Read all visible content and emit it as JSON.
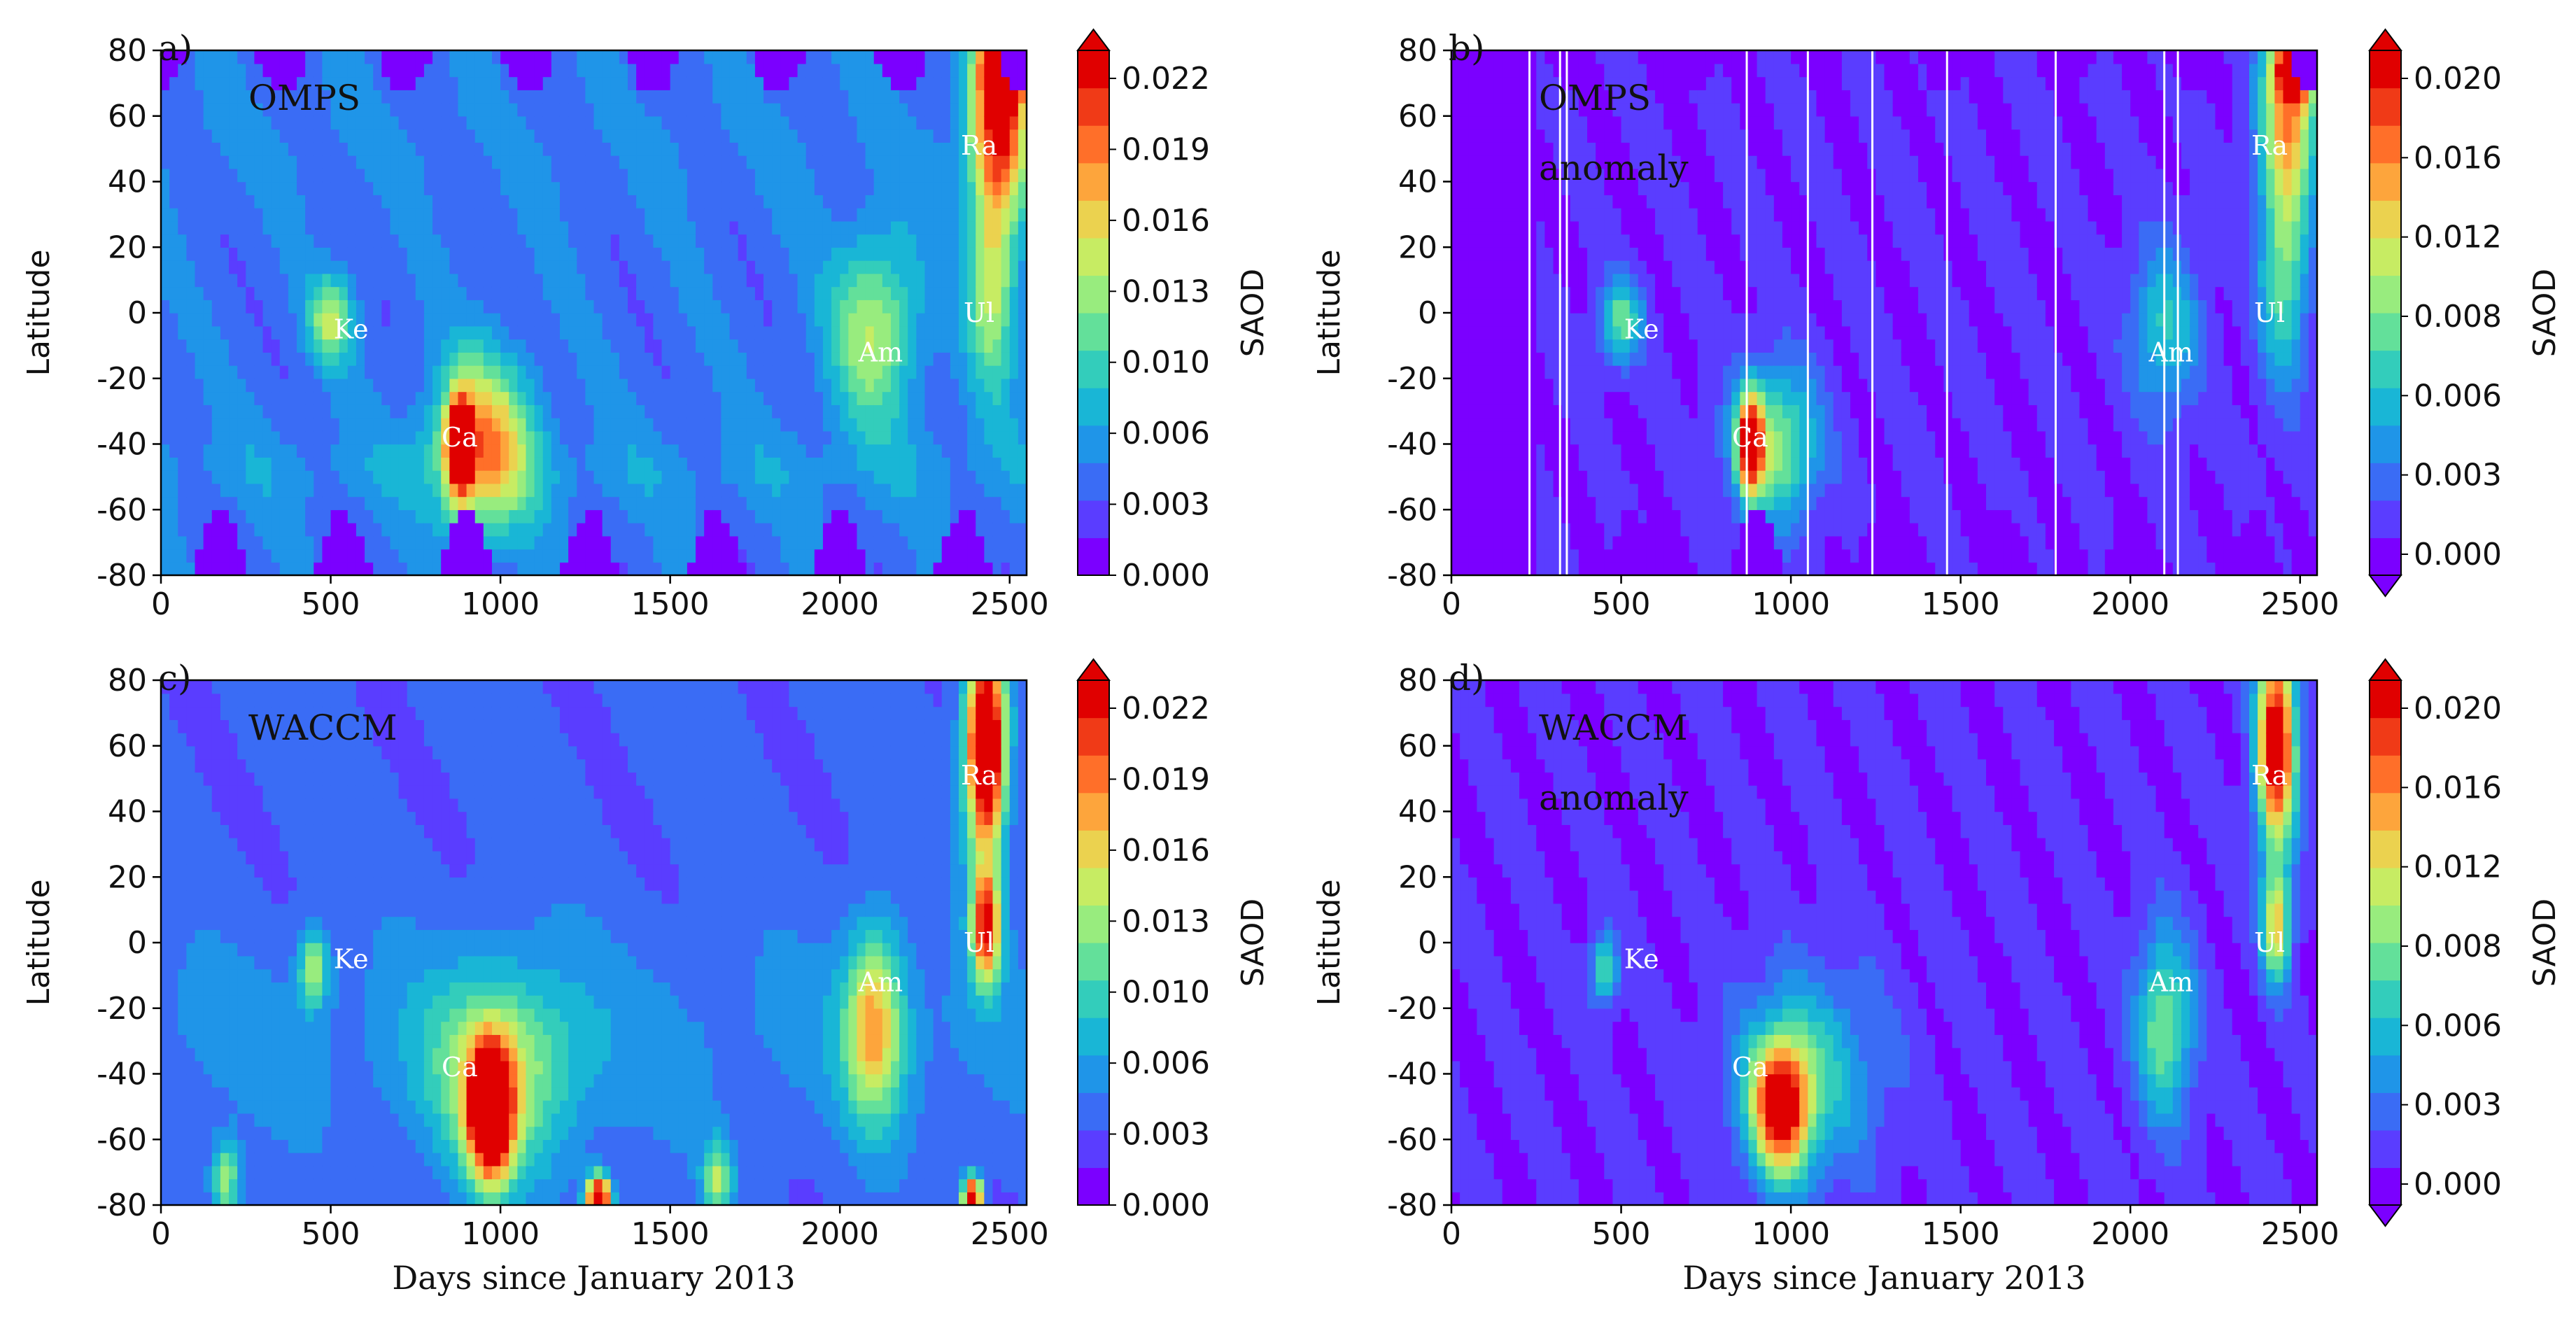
{
  "colormap": [
    "#7b00ff",
    "#5a3dff",
    "#3a6cf5",
    "#1f95e8",
    "#19b6d6",
    "#33cdbb",
    "#63e09a",
    "#98ec7e",
    "#c7ec63",
    "#ebd24f",
    "#fda53c",
    "#ff6f29",
    "#f03a17",
    "#e00000"
  ],
  "background_color": "#7b00ff",
  "chart_data": [
    {
      "id": "a",
      "type": "heatmap",
      "panel_label": "a)",
      "title": "OMPS",
      "subtitle": "",
      "xlabel": "",
      "ylabel": "Latitude",
      "cbar_label": "SAOD",
      "xlim": [
        0,
        2550
      ],
      "ylim": [
        -80,
        80
      ],
      "xticks": [
        0,
        500,
        1000,
        1500,
        2000,
        2500
      ],
      "yticks": [
        -80,
        -60,
        -40,
        -20,
        0,
        20,
        40,
        60,
        80
      ],
      "colorbar_ticks": [
        "0.000",
        "0.003",
        "0.006",
        "0.010",
        "0.013",
        "0.016",
        "0.019",
        "0.022"
      ],
      "colorbar_extend": "max",
      "anomaly": false,
      "gaps": [],
      "events": [
        {
          "label": "Ke",
          "day": 560,
          "lat": -5
        },
        {
          "label": "Ca",
          "day": 880,
          "lat": -38
        },
        {
          "label": "Am",
          "day": 2120,
          "lat": -12
        },
        {
          "label": "Ul",
          "day": 2410,
          "lat": 0
        },
        {
          "label": "Ra",
          "day": 2410,
          "lat": 51
        }
      ],
      "features": [
        {
          "day": 500,
          "lat": -2,
          "sd": 45,
          "sl": 9,
          "v": 0.01
        },
        {
          "day": 950,
          "lat": -40,
          "sd": 100,
          "sl": 18,
          "v": 0.015
        },
        {
          "day": 880,
          "lat": -40,
          "sd": 25,
          "sl": 10,
          "v": 0.024
        },
        {
          "day": 2100,
          "lat": -5,
          "sd": 90,
          "sl": 20,
          "v": 0.01
        },
        {
          "day": 2470,
          "lat": 60,
          "sd": 60,
          "sl": 18,
          "v": 0.018
        },
        {
          "day": 2490,
          "lat": 76,
          "sd": 45,
          "sl": 7,
          "v": 0.026
        },
        {
          "day": 2450,
          "lat": 15,
          "sd": 50,
          "sl": 25,
          "v": 0.012
        }
      ]
    },
    {
      "id": "b",
      "type": "heatmap",
      "panel_label": "b)",
      "title": "OMPS",
      "subtitle": "anomaly",
      "xlabel": "",
      "ylabel": "Latitude",
      "cbar_label": "SAOD",
      "xlim": [
        0,
        2550
      ],
      "ylim": [
        -80,
        80
      ],
      "xticks": [
        0,
        500,
        1000,
        1500,
        2000,
        2500
      ],
      "yticks": [
        -80,
        -60,
        -40,
        -20,
        0,
        20,
        40,
        60,
        80
      ],
      "colorbar_ticks": [
        "0.000",
        "0.003",
        "0.006",
        "0.008",
        "0.012",
        "0.016",
        "0.020"
      ],
      "colorbar_extend": "both",
      "anomaly": true,
      "gaps": [
        230,
        320,
        340,
        870,
        1050,
        1240,
        1460,
        1780,
        2100,
        2140
      ],
      "events": [
        {
          "label": "Ke",
          "day": 560,
          "lat": -5
        },
        {
          "label": "Ca",
          "day": 880,
          "lat": -38
        },
        {
          "label": "Am",
          "day": 2120,
          "lat": -12
        },
        {
          "label": "Ul",
          "day": 2410,
          "lat": 0
        },
        {
          "label": "Ra",
          "day": 2410,
          "lat": 51
        }
      ],
      "features": [
        {
          "day": 500,
          "lat": -2,
          "sd": 45,
          "sl": 9,
          "v": 0.009
        },
        {
          "day": 950,
          "lat": -40,
          "sd": 90,
          "sl": 16,
          "v": 0.011
        },
        {
          "day": 880,
          "lat": -40,
          "sd": 25,
          "sl": 10,
          "v": 0.02
        },
        {
          "day": 2100,
          "lat": -5,
          "sd": 70,
          "sl": 18,
          "v": 0.007
        },
        {
          "day": 2470,
          "lat": 60,
          "sd": 60,
          "sl": 18,
          "v": 0.014
        },
        {
          "day": 2490,
          "lat": 76,
          "sd": 45,
          "sl": 7,
          "v": 0.022
        },
        {
          "day": 2450,
          "lat": 15,
          "sd": 50,
          "sl": 25,
          "v": 0.01
        }
      ]
    },
    {
      "id": "c",
      "type": "heatmap",
      "panel_label": "c)",
      "title": "WACCM",
      "subtitle": "",
      "xlabel": "Days since January 2013",
      "ylabel": "Latitude",
      "cbar_label": "SAOD",
      "xlim": [
        0,
        2550
      ],
      "ylim": [
        -80,
        80
      ],
      "xticks": [
        0,
        500,
        1000,
        1500,
        2000,
        2500
      ],
      "yticks": [
        -80,
        -60,
        -40,
        -20,
        0,
        20,
        40,
        60,
        80
      ],
      "colorbar_ticks": [
        "0.000",
        "0.003",
        "0.006",
        "0.010",
        "0.013",
        "0.016",
        "0.019",
        "0.022"
      ],
      "colorbar_extend": "max",
      "anomaly": false,
      "gaps": [],
      "events": [
        {
          "label": "Ke",
          "day": 560,
          "lat": -5
        },
        {
          "label": "Ca",
          "day": 880,
          "lat": -38
        },
        {
          "label": "Am",
          "day": 2120,
          "lat": -12
        },
        {
          "label": "Ul",
          "day": 2410,
          "lat": 0
        },
        {
          "label": "Ra",
          "day": 2410,
          "lat": 51
        }
      ],
      "features": [
        {
          "day": 450,
          "lat": -8,
          "sd": 30,
          "sl": 8,
          "v": 0.01
        },
        {
          "day": 970,
          "lat": -52,
          "sd": 45,
          "sl": 14,
          "v": 0.026
        },
        {
          "day": 1000,
          "lat": -40,
          "sd": 150,
          "sl": 22,
          "v": 0.01
        },
        {
          "day": 2100,
          "lat": -25,
          "sd": 60,
          "sl": 20,
          "v": 0.014
        },
        {
          "day": 2430,
          "lat": 60,
          "sd": 40,
          "sl": 22,
          "v": 0.03
        },
        {
          "day": 2430,
          "lat": 5,
          "sd": 30,
          "sl": 12,
          "v": 0.02
        },
        {
          "day": 1290,
          "lat": -78,
          "sd": 25,
          "sl": 5,
          "v": 0.026
        },
        {
          "day": 2390,
          "lat": -78,
          "sd": 20,
          "sl": 5,
          "v": 0.024
        },
        {
          "day": 190,
          "lat": -72,
          "sd": 30,
          "sl": 8,
          "v": 0.01
        },
        {
          "day": 1640,
          "lat": -72,
          "sd": 30,
          "sl": 8,
          "v": 0.01
        }
      ]
    },
    {
      "id": "d",
      "type": "heatmap",
      "panel_label": "d)",
      "title": "WACCM",
      "subtitle": "anomaly",
      "xlabel": "Days since January 2013",
      "ylabel": "Latitude",
      "cbar_label": "SAOD",
      "xlim": [
        0,
        2550
      ],
      "ylim": [
        -80,
        80
      ],
      "xticks": [
        0,
        500,
        1000,
        1500,
        2000,
        2500
      ],
      "yticks": [
        -80,
        -60,
        -40,
        -20,
        0,
        20,
        40,
        60,
        80
      ],
      "colorbar_ticks": [
        "0.000",
        "0.003",
        "0.006",
        "0.008",
        "0.012",
        "0.016",
        "0.020"
      ],
      "colorbar_extend": "both",
      "anomaly": true,
      "gaps": [],
      "events": [
        {
          "label": "Ke",
          "day": 560,
          "lat": -5
        },
        {
          "label": "Ca",
          "day": 880,
          "lat": -38
        },
        {
          "label": "Am",
          "day": 2120,
          "lat": -12
        },
        {
          "label": "Ul",
          "day": 2410,
          "lat": 0
        },
        {
          "label": "Ra",
          "day": 2410,
          "lat": 51
        }
      ],
      "features": [
        {
          "day": 450,
          "lat": -8,
          "sd": 30,
          "sl": 8,
          "v": 0.008
        },
        {
          "day": 970,
          "lat": -50,
          "sd": 60,
          "sl": 14,
          "v": 0.02
        },
        {
          "day": 1050,
          "lat": -40,
          "sd": 150,
          "sl": 22,
          "v": 0.007
        },
        {
          "day": 2100,
          "lat": -25,
          "sd": 60,
          "sl": 20,
          "v": 0.01
        },
        {
          "day": 2430,
          "lat": 60,
          "sd": 40,
          "sl": 22,
          "v": 0.024
        },
        {
          "day": 2430,
          "lat": 5,
          "sd": 30,
          "sl": 12,
          "v": 0.014
        }
      ]
    }
  ]
}
